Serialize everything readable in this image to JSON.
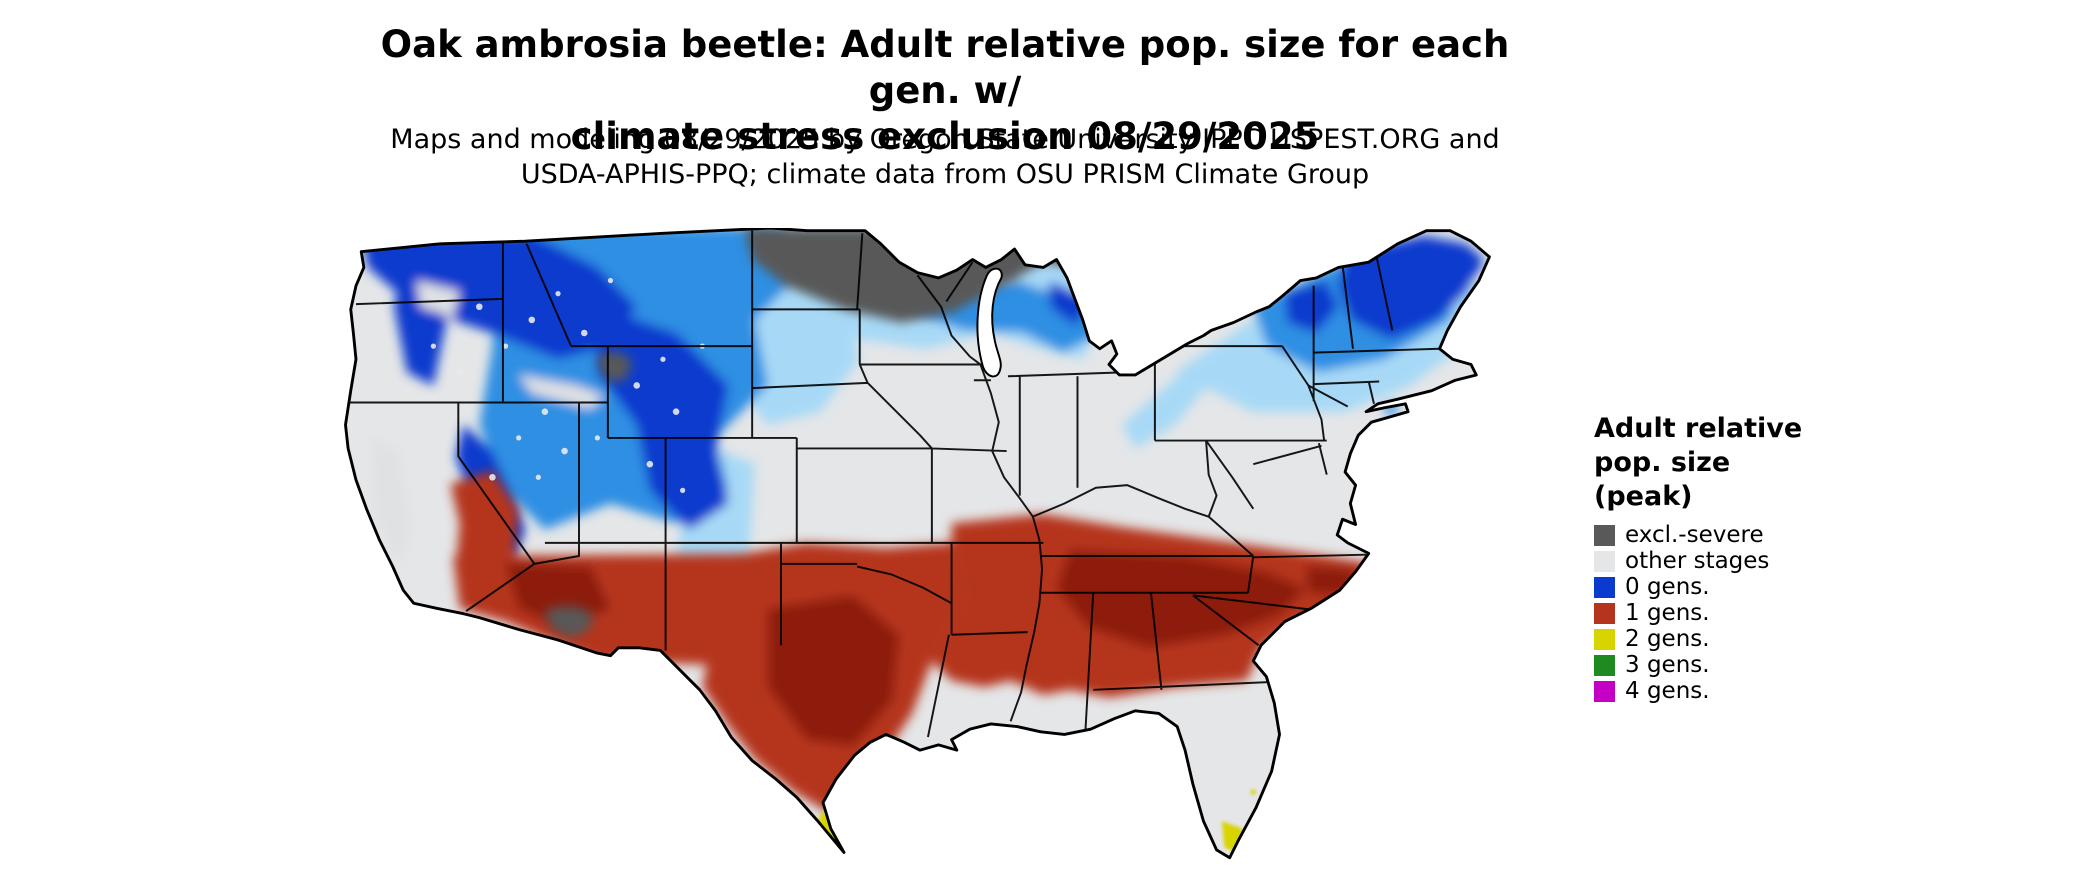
{
  "title": {
    "line1": "Oak ambrosia beetle: Adult relative pop. size for each gen. w/",
    "line2": "climate stress exclusion 08/29/2025"
  },
  "subtitle": {
    "line1": "Maps and modeling 08/29/2025 by Oregon State University IPPC USPEST.ORG and",
    "line2": "USDA-APHIS-PPQ; climate data from OSU PRISM Climate Group"
  },
  "legend": {
    "title_line1": "Adult relative",
    "title_line2": "pop. size",
    "title_line3": "(peak)",
    "items": [
      {
        "label": "excl.-severe",
        "color": "#595959"
      },
      {
        "label": "other stages",
        "color": "#e4e6e8"
      },
      {
        "label": "0 gens.",
        "color": "#0a3ace"
      },
      {
        "label": "1 gens.",
        "color": "#b5341e"
      },
      {
        "label": "2 gens.",
        "color": "#d8d400"
      },
      {
        "label": "3 gens.",
        "color": "#1f8a1f"
      },
      {
        "label": "4 gens.",
        "color": "#c400c4"
      }
    ]
  },
  "palette": {
    "dark_gray": "#595959",
    "light_gray": "#e4e6e8",
    "valley_gray": "#dfe1e3",
    "pale_blue": "#a7d9f6",
    "mid_blue": "#2e8fe3",
    "deep_blue": "#0a3ace",
    "red": "#b5341e",
    "dark_red": "#8d1c0b",
    "yellow": "#d8d400",
    "outline": "#000000",
    "water": "#ffffff"
  },
  "map": {
    "date_shown": "08/29/2025",
    "regions": [
      {
        "class": "excl.-severe",
        "areas": "North Dakota, most of Minnesota, northern Wisconsin and upper Michigan; small spots in northwest Wyoming and central Arizona"
      },
      {
        "class": "0 gens.",
        "areas": "Pacific Northwest, northern Rockies, Sierra Nevada, Great Basin highlands, Colorado mountains, northern Great Lakes fringe, Adirondacks and northern New England"
      },
      {
        "class": "other stages",
        "areas": "Central and southern Plains, Midwest, Gulf Coast strip, peninsular Florida, California Central Valley"
      },
      {
        "class": "1 gens.",
        "areas": "Southern California foothills, southern Arizona, southern New Mexico, most of Texas, southern Oklahoma, Arkansas, northern Louisiana, Tennessee, Deep South, Georgia and the Carolinas"
      },
      {
        "class": "2 gens.",
        "areas": "Southern tip of Texas and southern tip of Florida"
      }
    ]
  }
}
